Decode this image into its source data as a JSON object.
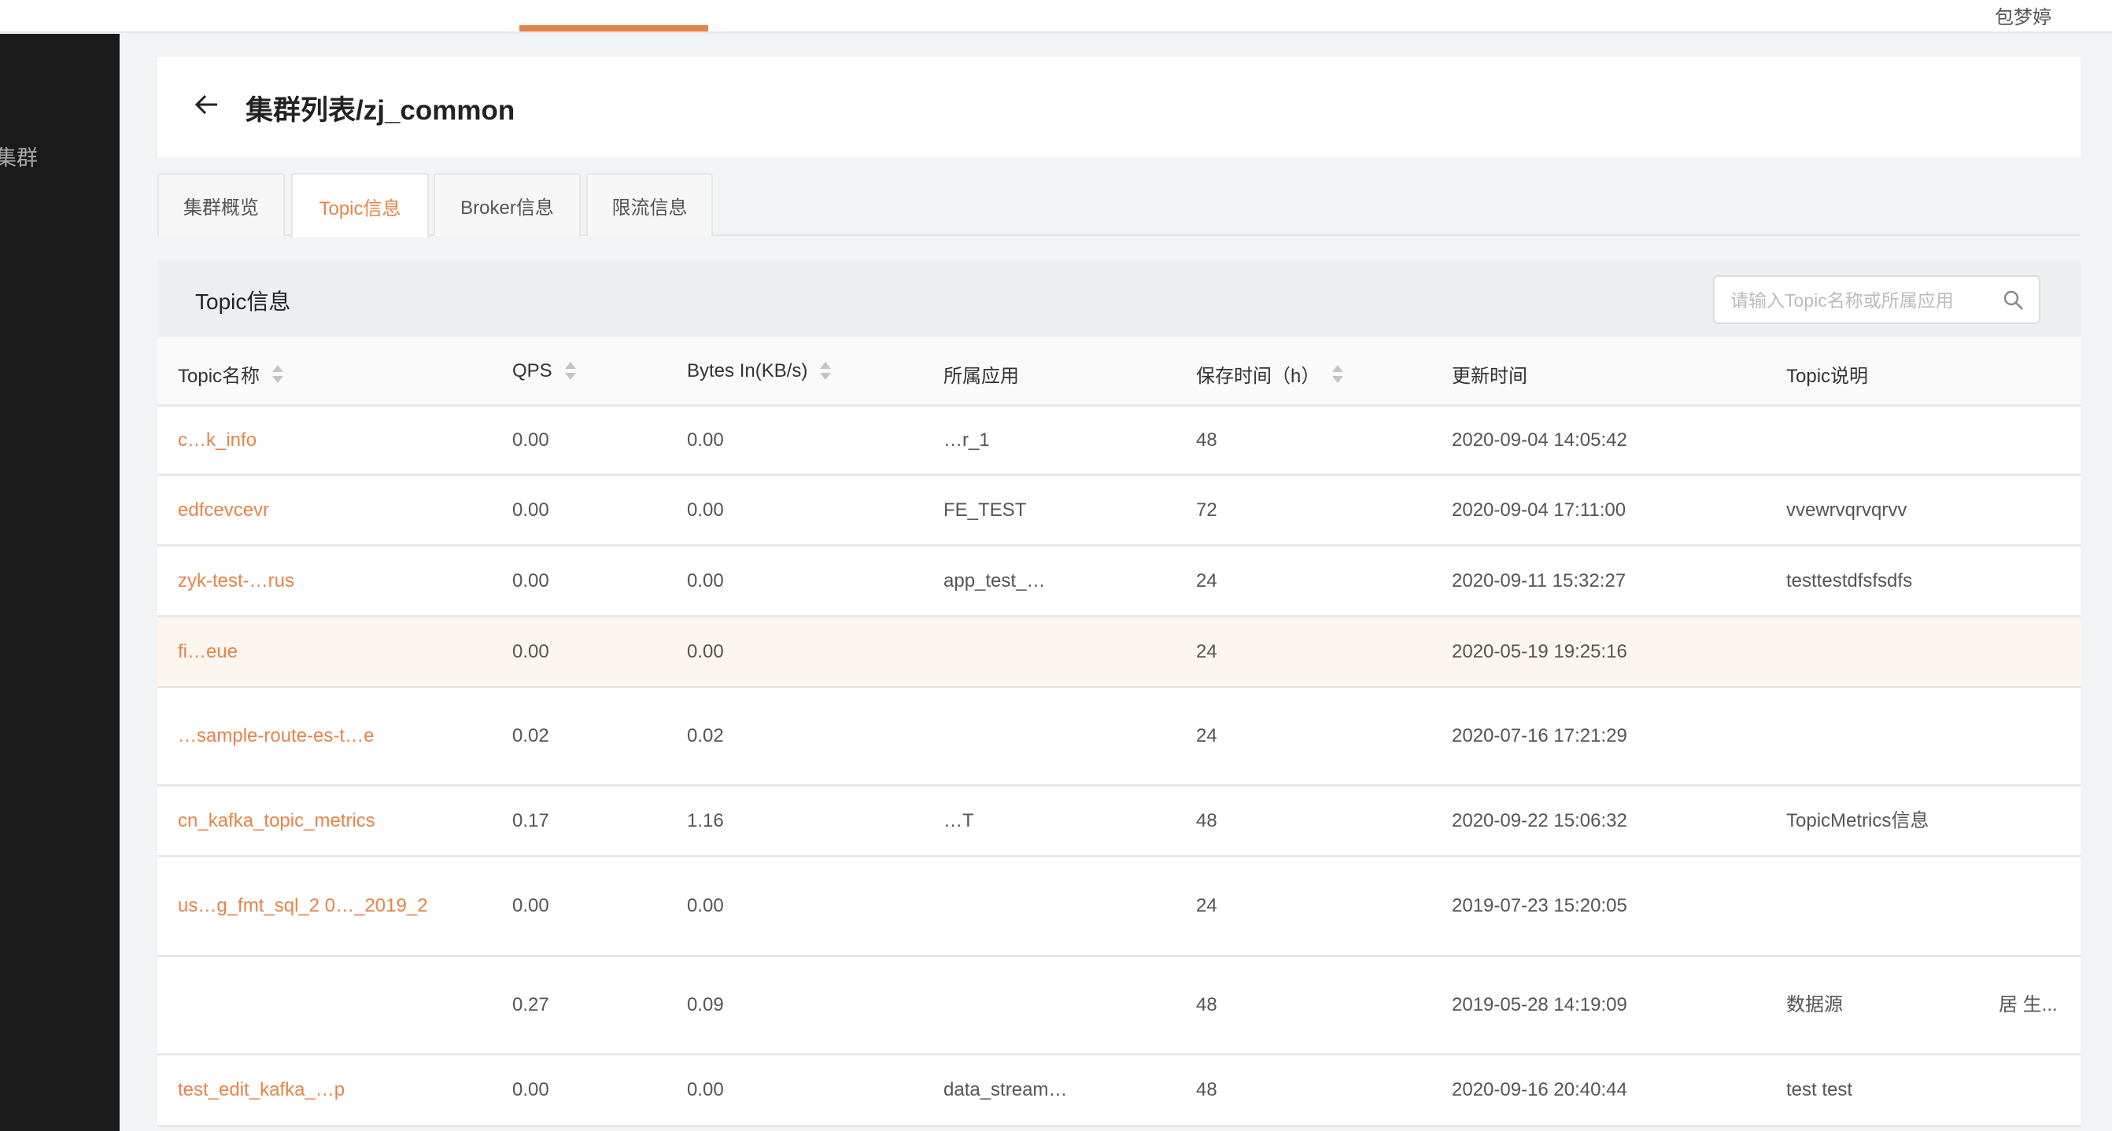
{
  "header": {
    "user": "包梦婷",
    "accent": "#e5844a"
  },
  "sidebar": {
    "items": [
      {
        "label": "集群"
      }
    ]
  },
  "page": {
    "title": "集群列表/zj_common",
    "back_icon": "arrow-left-icon"
  },
  "tabs": [
    {
      "label": "集群概览"
    },
    {
      "label": "Topic信息",
      "active": true
    },
    {
      "label": "Broker信息"
    },
    {
      "label": "限流信息"
    }
  ],
  "section": {
    "title": "Topic信息",
    "search_placeholder": "请输入Topic名称或所属应用",
    "search_value": ""
  },
  "table": {
    "columns": [
      {
        "label": "Topic名称",
        "sortable": true
      },
      {
        "label": "QPS",
        "sortable": true
      },
      {
        "label": "Bytes In(KB/s)",
        "sortable": true
      },
      {
        "label": "所属应用",
        "sortable": false
      },
      {
        "label": "保存时间（h）",
        "sortable": true
      },
      {
        "label": "更新时间",
        "sortable": false
      },
      {
        "label": "Topic说明",
        "sortable": false
      }
    ],
    "rows": [
      {
        "name": "c…k_info",
        "qps": "0.00",
        "bytes_in": "0.00",
        "app": "…r_1",
        "retention": "48",
        "updated": "2020-09-04 14:05:42",
        "desc": ""
      },
      {
        "name": "edfcevcevr",
        "qps": "0.00",
        "bytes_in": "0.00",
        "app": "FE_TEST",
        "retention": "72",
        "updated": "2020-09-04 17:11:00",
        "desc": "vvewrvqrvqrvv"
      },
      {
        "name": "zyk-test-…rus",
        "qps": "0.00",
        "bytes_in": "0.00",
        "app": "app_test_…",
        "retention": "24",
        "updated": "2020-09-11 15:32:27",
        "desc": "testtestdfsfsdfs"
      },
      {
        "name": "fi…eue",
        "qps": "0.00",
        "bytes_in": "0.00",
        "app": "",
        "retention": "24",
        "updated": "2020-05-19 19:25:16",
        "desc": "",
        "highlighted": true
      },
      {
        "name": "…sample-route-es-t…e",
        "qps": "0.02",
        "bytes_in": "0.02",
        "app": "",
        "retention": "24",
        "updated": "2020-07-16 17:21:29",
        "desc": ""
      },
      {
        "name": "cn_kafka_topic_metrics",
        "qps": "0.17",
        "bytes_in": "1.16",
        "app": "…T",
        "retention": "48",
        "updated": "2020-09-22 15:06:32",
        "desc": "TopicMetrics信息"
      },
      {
        "name": "us…g_fmt_sql_2 0…_2019_2",
        "qps": "0.00",
        "bytes_in": "0.00",
        "app": "",
        "retention": "24",
        "updated": "2019-07-23 15:20:05",
        "desc": ""
      },
      {
        "name": "",
        "qps": "0.27",
        "bytes_in": "0.09",
        "app": "",
        "retention": "48",
        "updated": "2019-05-28 14:19:09",
        "desc": "数据源",
        "desc_extra": "居 生..."
      },
      {
        "name": "test_edit_kafka_…p",
        "qps": "0.00",
        "bytes_in": "0.00",
        "app": "data_stream…",
        "retention": "48",
        "updated": "2020-09-16 20:40:44",
        "desc": "test test"
      }
    ]
  }
}
